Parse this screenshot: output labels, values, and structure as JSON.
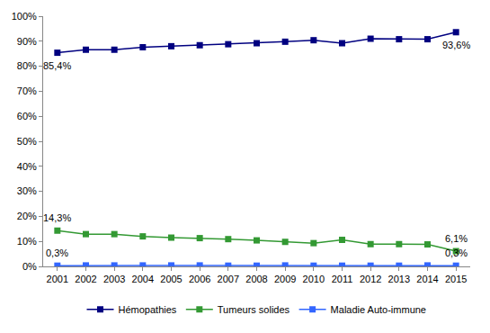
{
  "chart_data": {
    "type": "line",
    "categories": [
      "2001",
      "2002",
      "2003",
      "2004",
      "2005",
      "2006",
      "2007",
      "2008",
      "2009",
      "2010",
      "2011",
      "2012",
      "2013",
      "2014",
      "2015"
    ],
    "series": [
      {
        "name": "Hémopathies",
        "color": "#000080",
        "marker": "square",
        "values": [
          85.4,
          86.6,
          86.6,
          87.6,
          88.0,
          88.4,
          88.8,
          89.2,
          89.8,
          90.4,
          89.2,
          91.0,
          90.8,
          90.8,
          93.6
        ]
      },
      {
        "name": "Tumeurs solides",
        "color": "#339933",
        "marker": "square",
        "values": [
          14.3,
          12.9,
          12.9,
          12.0,
          11.5,
          11.3,
          10.9,
          10.4,
          9.8,
          9.3,
          10.6,
          8.9,
          8.9,
          8.8,
          6.1
        ]
      },
      {
        "name": "Maladie Auto-immune",
        "color": "#3366ff",
        "marker": "square",
        "values": [
          0.3,
          0.4,
          0.4,
          0.4,
          0.4,
          0.4,
          0.3,
          0.3,
          0.4,
          0.3,
          0.3,
          0.3,
          0.3,
          0.4,
          0.3
        ]
      }
    ],
    "annotations": [
      {
        "text": "85,4%",
        "series": "Hémopathies",
        "x": "2001",
        "y": 85.4
      },
      {
        "text": "93,6%",
        "series": "Hémopathies",
        "x": "2015",
        "y": 93.6
      },
      {
        "text": "14,3%",
        "series": "Tumeurs solides",
        "x": "2001",
        "y": 14.3
      },
      {
        "text": "6,1%",
        "series": "Tumeurs solides",
        "x": "2015",
        "y": 6.1
      },
      {
        "text": "0,3%",
        "series": "Maladie Auto-immune",
        "x": "2001",
        "y": 0.3
      },
      {
        "text": "0,3%",
        "series": "Maladie Auto-immune",
        "x": "2015",
        "y": 0.3
      }
    ],
    "ylim": [
      0,
      100
    ],
    "yticks": [
      {
        "value": 0,
        "label": "0%"
      },
      {
        "value": 10,
        "label": "10%"
      },
      {
        "value": 20,
        "label": "20%"
      },
      {
        "value": 30,
        "label": "30%"
      },
      {
        "value": 40,
        "label": "40%"
      },
      {
        "value": 50,
        "label": "50%"
      },
      {
        "value": 60,
        "label": "60%"
      },
      {
        "value": 70,
        "label": "70%"
      },
      {
        "value": 80,
        "label": "80%"
      },
      {
        "value": 90,
        "label": "90%"
      },
      {
        "value": 100,
        "label": "100%"
      }
    ],
    "grid": false,
    "legend": "bottom"
  }
}
